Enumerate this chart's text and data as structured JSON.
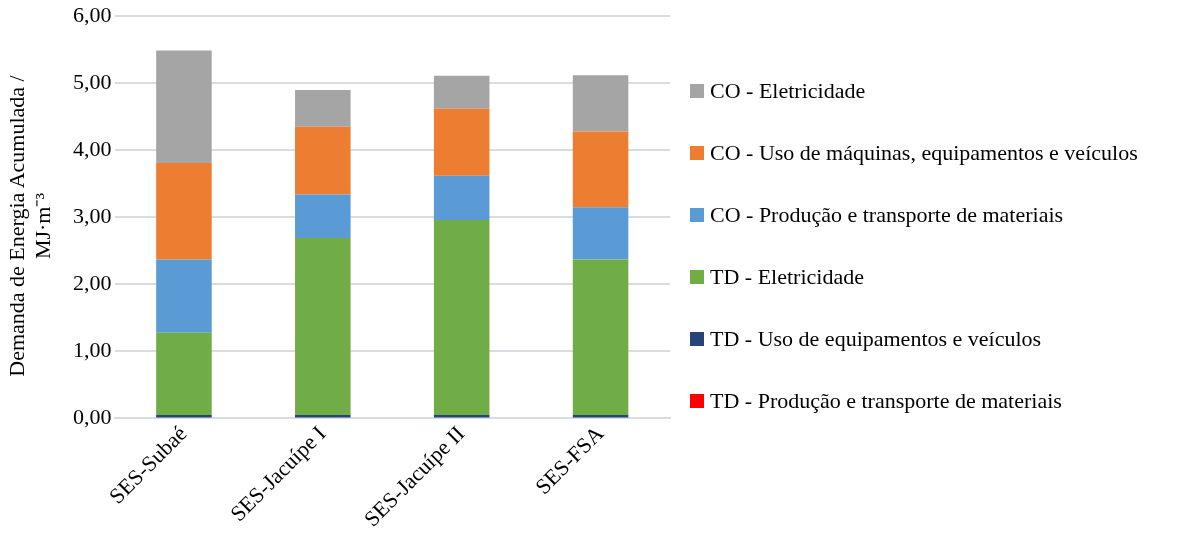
{
  "chart_data": {
    "type": "bar",
    "stacked": true,
    "ylabel": "Demanda de Energia Acumulada / MJ·m⁻³",
    "categories": [
      "SES-Subaé",
      "SES-Jacuípe I",
      "SES-Jacuípe II",
      "SES-FSA"
    ],
    "series": [
      {
        "name": "TD - Produção e transporte de materiais",
        "color": "#ff0000",
        "values": [
          0,
          0,
          0,
          0
        ]
      },
      {
        "name": "TD - Uso de equipamentos e veículos",
        "color": "#264478",
        "values": [
          0.05,
          0.05,
          0.05,
          0.05
        ]
      },
      {
        "name": "TD - Eletricidade",
        "color": "#70ad47",
        "values": [
          1.23,
          2.64,
          2.91,
          2.32
        ]
      },
      {
        "name": "CO - Produção e transporte de materiais",
        "color": "#5b9bd5",
        "values": [
          1.09,
          0.65,
          0.66,
          0.78
        ]
      },
      {
        "name": "CO - Uso de máquinas, equipamentos e veículos",
        "color": "#ed7d31",
        "values": [
          1.44,
          1.01,
          1.0,
          1.13
        ]
      },
      {
        "name": "CO - Eletricidade",
        "color": "#a5a5a5",
        "values": [
          1.68,
          0.55,
          0.49,
          0.84
        ]
      }
    ],
    "ylim": [
      0,
      6
    ],
    "yticks": [
      {
        "value": 0,
        "label": "0,00"
      },
      {
        "value": 1,
        "label": "1,00"
      },
      {
        "value": 2,
        "label": "2,00"
      },
      {
        "value": 3,
        "label": "3,00"
      },
      {
        "value": 4,
        "label": "4,00"
      },
      {
        "value": 5,
        "label": "5,00"
      },
      {
        "value": 6,
        "label": "6,00"
      }
    ],
    "grid": "y",
    "legend": "right"
  }
}
